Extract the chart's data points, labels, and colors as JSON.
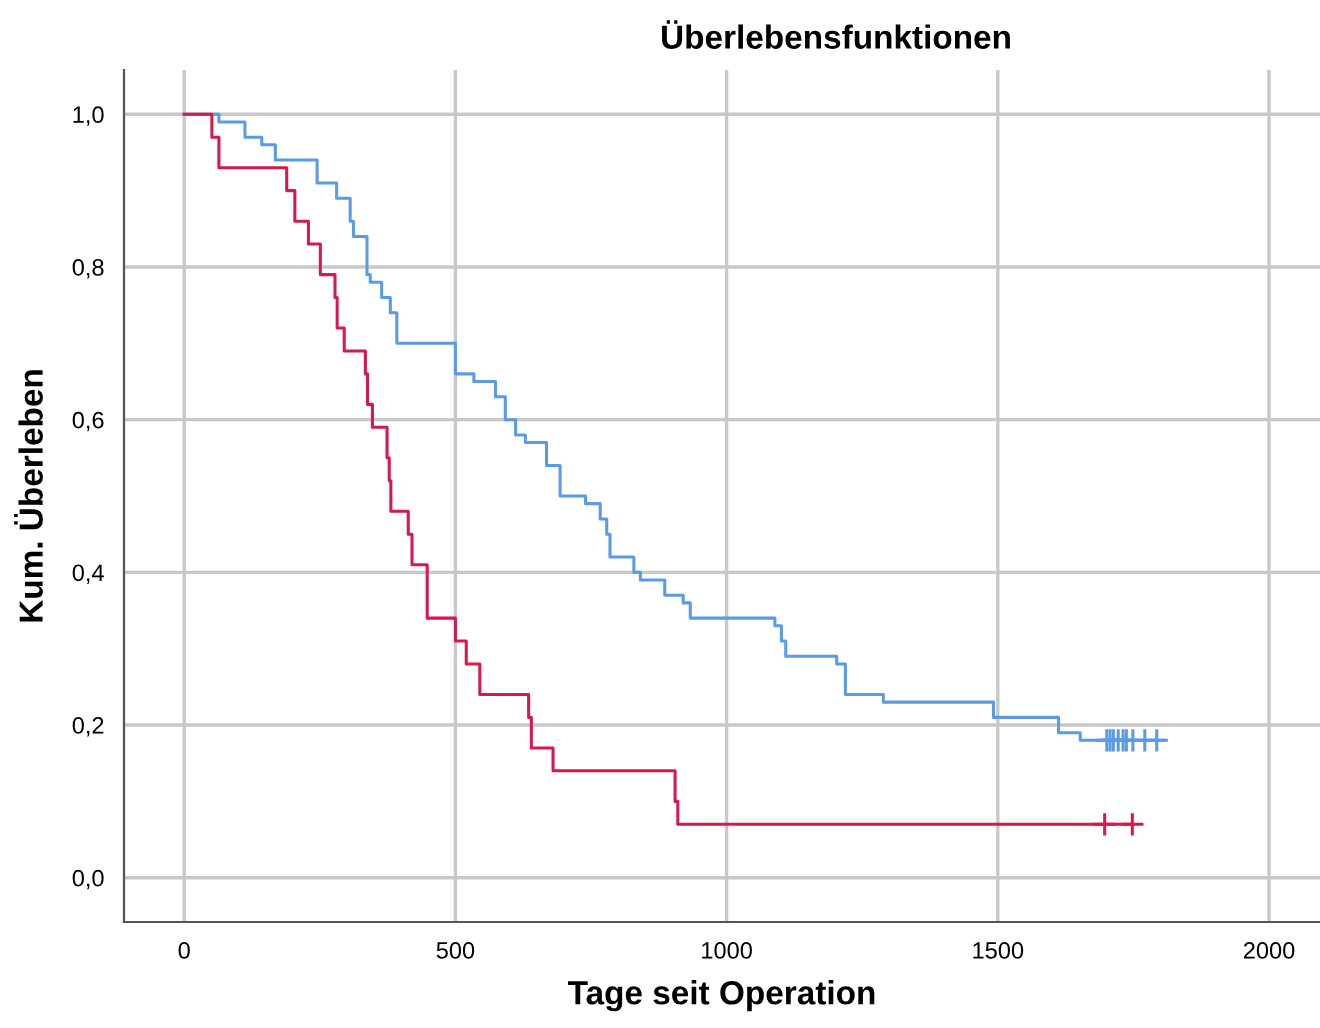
{
  "chart_data": {
    "type": "step",
    "title": "Überlebensfunktionen",
    "xlabel": "Tage seit Operation",
    "ylabel": "Kum. Überleben",
    "xlim": [
      -111,
      2094
    ],
    "ylim": [
      -0.058,
      1.058
    ],
    "xticks": [
      0,
      500,
      1000,
      1500,
      2000
    ],
    "yticks": [
      {
        "value": 0.0,
        "label": "0,0"
      },
      {
        "value": 0.2,
        "label": "0,2"
      },
      {
        "value": 0.4,
        "label": "0,4"
      },
      {
        "value": 0.6,
        "label": "0,6"
      },
      {
        "value": 0.8,
        "label": "0,8"
      },
      {
        "value": 1.0,
        "label": "1,0"
      }
    ],
    "grid": true,
    "legend": false,
    "line_style": "solid",
    "series": [
      {
        "color": "#5a9be8",
        "x": [
          0,
          64,
          112,
          143,
          168,
          245,
          281,
          306,
          312,
          337,
          343,
          364,
          380,
          392,
          500,
          534,
          574,
          592,
          611,
          629,
          668,
          693,
          740,
          767,
          779,
          785,
          829,
          841,
          886,
          920,
          933,
          1089,
          1101,
          1109,
          1203,
          1219,
          1289,
          1492,
          1612,
          1652,
          1806
        ],
        "values": [
          1.0,
          0.99,
          0.97,
          0.96,
          0.94,
          0.91,
          0.89,
          0.86,
          0.84,
          0.79,
          0.78,
          0.76,
          0.74,
          0.7,
          0.66,
          0.65,
          0.63,
          0.6,
          0.58,
          0.57,
          0.54,
          0.5,
          0.49,
          0.47,
          0.45,
          0.42,
          0.4,
          0.39,
          0.37,
          0.36,
          0.34,
          0.33,
          0.31,
          0.29,
          0.28,
          0.24,
          0.23,
          0.21,
          0.19,
          0.18,
          0.18
        ]
      },
      {
        "color": "#d5194b",
        "x": [
          0,
          51,
          64,
          189,
          204,
          229,
          251,
          278,
          282,
          295,
          334,
          338,
          347,
          374,
          378,
          381,
          413,
          420,
          448,
          500,
          520,
          545,
          635,
          640,
          680,
          905,
          910,
          1750
        ],
        "values": [
          1.0,
          0.97,
          0.93,
          0.9,
          0.86,
          0.83,
          0.79,
          0.76,
          0.72,
          0.69,
          0.66,
          0.62,
          0.59,
          0.55,
          0.52,
          0.48,
          0.45,
          0.41,
          0.34,
          0.31,
          0.28,
          0.24,
          0.21,
          0.17,
          0.14,
          0.1,
          0.07,
          0.07
        ]
      },
      {
        "type": "scatter",
        "marker": "cross",
        "color": "#5a9be8",
        "x": [
          1701,
          1707,
          1713,
          1722,
          1731,
          1737,
          1749,
          1771,
          1793
        ],
        "values": [
          0.18,
          0.18,
          0.18,
          0.18,
          0.18,
          0.18,
          0.18,
          0.18,
          0.18
        ]
      },
      {
        "type": "scatter",
        "marker": "cross",
        "color": "#d5194b",
        "x": [
          1697,
          1748
        ],
        "values": [
          0.07,
          0.07
        ]
      }
    ]
  }
}
